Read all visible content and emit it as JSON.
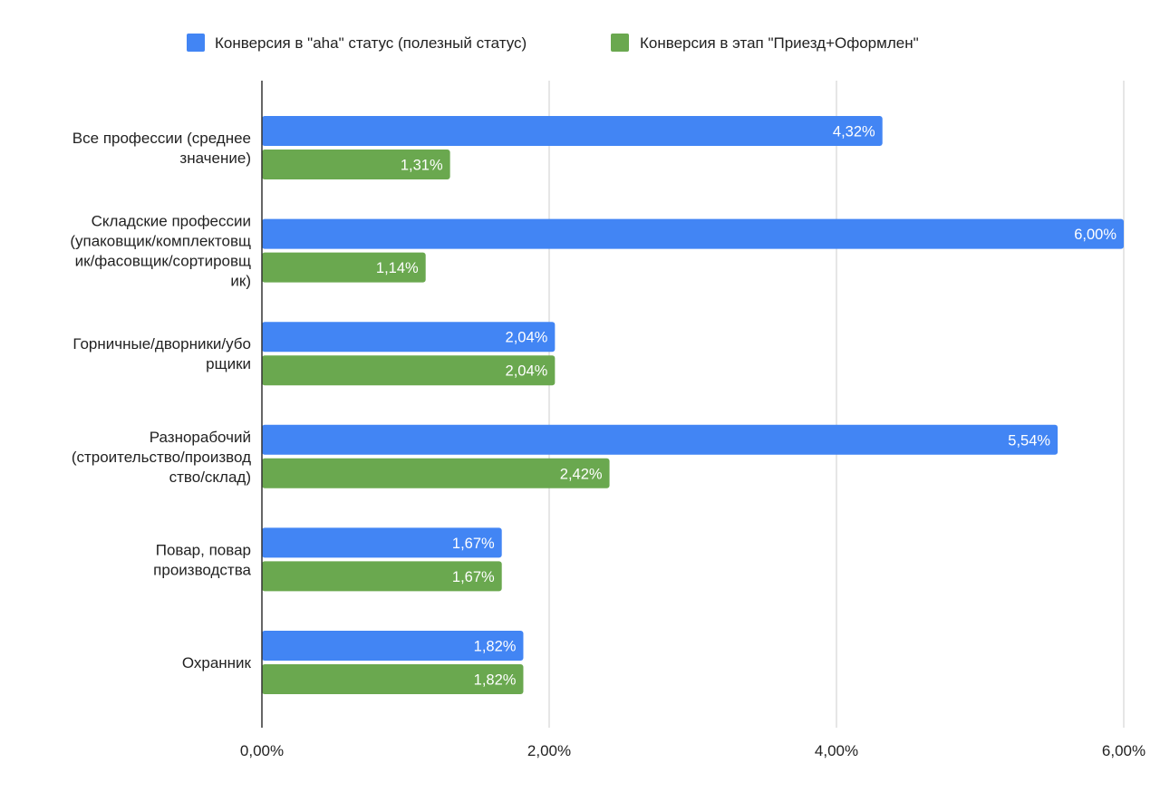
{
  "chart_data": {
    "type": "bar",
    "orientation": "horizontal",
    "categories": [
      "Все профессии (среднее значение)",
      "Складские профессии (упаковщик/комплектовщик/фасовщик/сортировщик)",
      "Горничные/дворники/уборщики",
      "Разнорабочий (строительство/производство/склад)",
      "Повар, повар производства",
      "Охранник"
    ],
    "category_label_lines": [
      [
        "Все профессии (среднее",
        "значение)"
      ],
      [
        "Складские профессии",
        "(упаковщик/комплектовщ",
        "ик/фасовщик/сортировщ",
        "ик)"
      ],
      [
        "Горничные/дворники/убо",
        "рщики"
      ],
      [
        "Разнорабочий",
        "(строительство/производ",
        "ство/склад)"
      ],
      [
        "Повар, повар",
        "производства"
      ],
      [
        "Охранник"
      ]
    ],
    "series": [
      {
        "name": "Конверсия в \"aha\" статус (полезный статус)",
        "color": "#4285F4",
        "values": [
          4.32,
          6.0,
          2.04,
          5.54,
          1.67,
          1.82
        ],
        "data_labels": [
          "4,32%",
          "6,00%",
          "2,04%",
          "5,54%",
          "1,67%",
          "1,82%"
        ]
      },
      {
        "name": "Конверсия в этап \"Приезд+Оформлен\"",
        "color": "#6AA84F",
        "values": [
          1.31,
          1.14,
          2.04,
          2.42,
          1.67,
          1.82
        ],
        "data_labels": [
          "1,31%",
          "1,14%",
          "2,04%",
          "2,42%",
          "1,67%",
          "1,82%"
        ]
      }
    ],
    "x_ticks": [
      0,
      2,
      4,
      6
    ],
    "x_tick_labels": [
      "0,00%",
      "2,00%",
      "4,00%",
      "6,00%"
    ],
    "xlim": [
      0,
      6
    ],
    "unit": "%",
    "grid": "vertical",
    "legend_position": "top"
  }
}
